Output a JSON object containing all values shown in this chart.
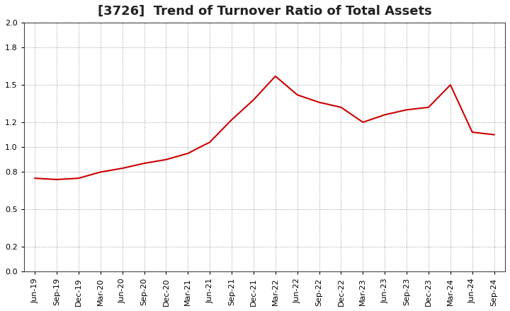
{
  "title": "[3726]  Trend of Turnover Ratio of Total Assets",
  "x_labels": [
    "Jun-19",
    "Sep-19",
    "Dec-19",
    "Mar-20",
    "Jun-20",
    "Sep-20",
    "Dec-20",
    "Mar-21",
    "Jun-21",
    "Sep-21",
    "Dec-21",
    "Mar-22",
    "Jun-22",
    "Sep-22",
    "Dec-22",
    "Mar-23",
    "Jun-23",
    "Sep-23",
    "Dec-23",
    "Mar-24",
    "Jun-24",
    "Sep-24"
  ],
  "y_values": [
    0.75,
    0.74,
    0.75,
    0.8,
    0.83,
    0.87,
    0.9,
    0.95,
    1.04,
    1.22,
    1.38,
    1.57,
    1.42,
    1.36,
    1.32,
    1.2,
    1.26,
    1.3,
    1.32,
    1.5,
    1.12,
    1.1
  ],
  "ylim": [
    0.0,
    2.0
  ],
  "yticks": [
    0.0,
    0.2,
    0.5,
    0.8,
    1.0,
    1.2,
    1.5,
    1.8,
    2.0
  ],
  "line_color": "#cc0000",
  "line_width": 1.5,
  "background_color": "#ffffff",
  "grid_color": "#999999",
  "title_fontsize": 13,
  "tick_fontsize": 8,
  "title_color": "#222222"
}
